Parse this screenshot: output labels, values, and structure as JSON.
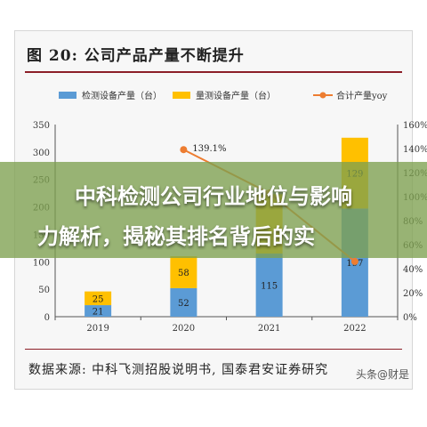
{
  "figure": {
    "title": "图  20:  公司产品产量不断提升",
    "source": "数据来源:  中科飞测招股说明书,  国泰君安证券研究",
    "watermark": "头条@财是"
  },
  "overlay": {
    "line1": "中科检测公司行业地位与影响",
    "line2": "力解析，揭秘其排名背后的实"
  },
  "colors": {
    "series_blue": "#5b9bd5",
    "series_yellow": "#ffc000",
    "series_line": "#ed7d31",
    "title_rule": "#8c1f28",
    "overlay_band": "#7ea050"
  },
  "chart_data": {
    "type": "bar",
    "stacked": true,
    "categories": [
      "2019",
      "2020",
      "2021",
      "2022"
    ],
    "series": [
      {
        "name": "检测设备产量（台）",
        "type": "bar",
        "axis": "left",
        "values": [
          21,
          52,
          115,
          197
        ]
      },
      {
        "name": "量测设备产量（台）",
        "type": "bar",
        "axis": "left",
        "values": [
          25,
          58,
          108,
          129
        ]
      },
      {
        "name": "合计产量yoy",
        "type": "line",
        "axis": "right",
        "values": [
          null,
          139.1,
          103,
          46
        ]
      }
    ],
    "data_labels": {
      "bar_values": [
        [
          "21",
          "52",
          "115",
          "197"
        ],
        [
          "25",
          "58",
          "",
          "129"
        ]
      ],
      "line_values": [
        "",
        "139.1%",
        "",
        ""
      ]
    },
    "y_left": {
      "ylim": [
        0,
        350
      ],
      "ticks": [
        "0",
        "50",
        "100",
        "150",
        "200",
        "250",
        "300",
        "350"
      ]
    },
    "y_right": {
      "ylim": [
        0,
        160
      ],
      "ticks": [
        "0%",
        "20%",
        "40%",
        "60%",
        "80%",
        "100%",
        "120%",
        "140%",
        "160%"
      ]
    },
    "legend_position": "top",
    "grid": false
  }
}
